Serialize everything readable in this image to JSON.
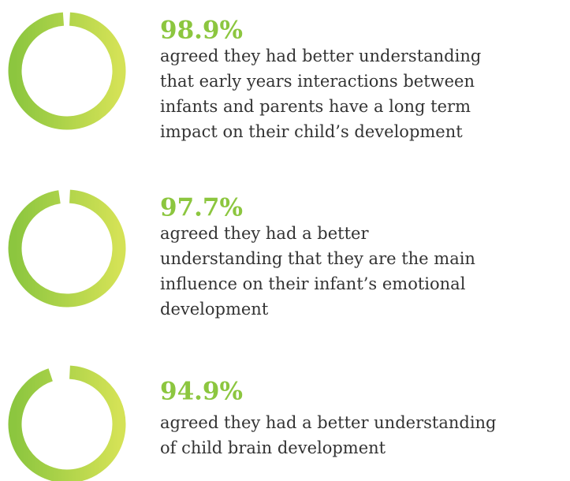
{
  "chart_data": [
    {
      "type": "donut",
      "values": [
        98.9
      ],
      "value_labels": [
        "98.9%"
      ],
      "max": 100,
      "colors": [
        "#8cc63f",
        "#d4e256"
      ],
      "text": [
        "agreed they had better understanding",
        "that early years interactions between",
        "infants and parents have a long term",
        "impact on their child’s development"
      ]
    },
    {
      "type": "donut",
      "values": [
        97.7
      ],
      "value_labels": [
        "97.7%"
      ],
      "max": 100,
      "colors": [
        "#8cc63f",
        "#d4e256"
      ],
      "text": [
        "agreed they had a better",
        "understanding that they are the main",
        "influence on their infant’s emotional",
        "development"
      ]
    },
    {
      "type": "donut",
      "values": [
        94.9
      ],
      "value_labels": [
        "94.9%"
      ],
      "max": 100,
      "colors": [
        "#8cc63f",
        "#d4e256"
      ],
      "text": [
        "agreed they had a better understanding",
        "of child brain development"
      ]
    }
  ]
}
